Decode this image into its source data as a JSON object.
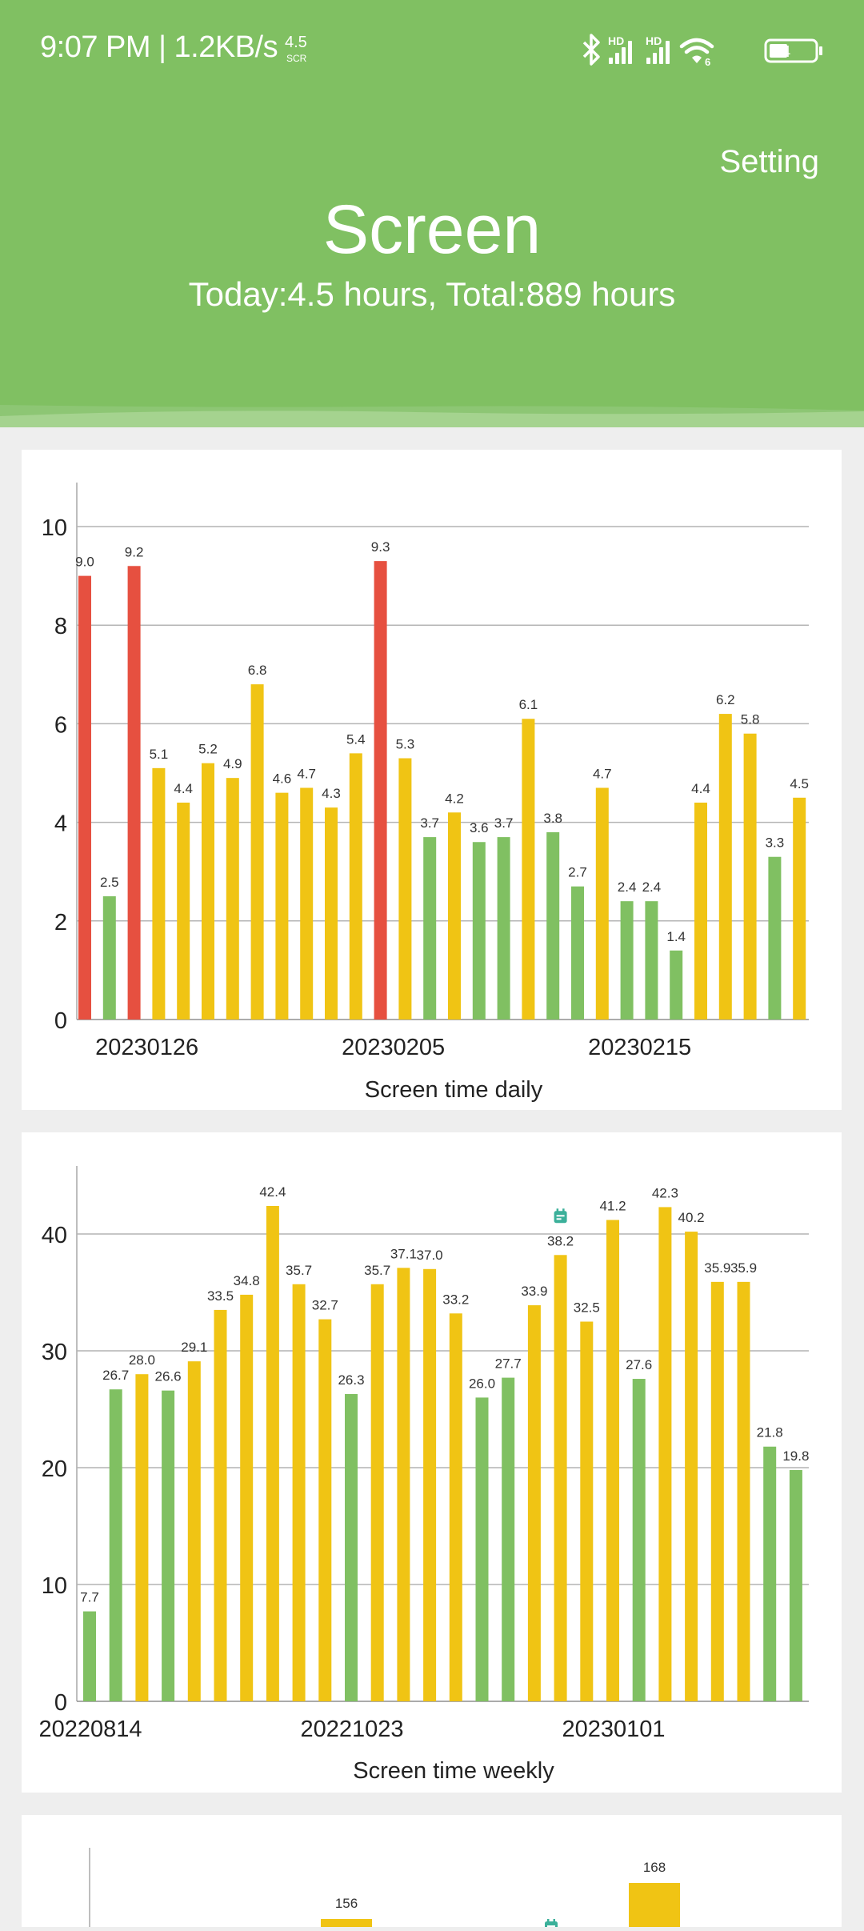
{
  "status_bar": {
    "time": "9:07 PM | 1.2KB/s",
    "scr_value": "4.5",
    "scr_label": "SCR",
    "signal1_label": "HD",
    "signal2_label": "HD",
    "wifi_label": "6",
    "battery_level": "44",
    "icons": [
      "bluetooth-icon",
      "cellular-signal-icon",
      "cellular-signal-icon",
      "wifi-icon",
      "battery-icon"
    ]
  },
  "header": {
    "setting_label": "Setting",
    "title": "Screen",
    "summary": "Today:4.5 hours, Total:889 hours"
  },
  "colors": {
    "header_green": "#80c062",
    "bar_green": "#80c062",
    "bar_yellow": "#f0c414",
    "bar_red": "#e65040",
    "marker_teal": "#3bb09a",
    "background": "#eeeeee"
  },
  "chart_data": [
    {
      "type": "bar",
      "title": "Screen time daily",
      "xlabel": "",
      "ylabel": "",
      "ylim": [
        0,
        11
      ],
      "yticks": [
        0,
        2,
        4,
        6,
        8,
        10
      ],
      "grid": true,
      "x_tick_labels": [
        {
          "index": 2,
          "label": "20230126"
        },
        {
          "index": 12,
          "label": "20230205"
        },
        {
          "index": 22,
          "label": "20230215"
        }
      ],
      "values": [
        9.0,
        2.5,
        9.2,
        5.1,
        4.4,
        5.2,
        4.9,
        6.8,
        4.6,
        4.7,
        4.3,
        5.4,
        9.3,
        5.3,
        3.7,
        4.2,
        3.6,
        3.7,
        6.1,
        3.8,
        2.7,
        4.7,
        2.4,
        2.4,
        1.4,
        4.4,
        6.2,
        5.8,
        3.3,
        4.5
      ],
      "labels": [
        "9.0",
        "2.5",
        "9.2",
        "5.1",
        "4.4",
        "5.2",
        "4.9",
        "6.8",
        "4.6",
        "4.7",
        "4.3",
        "5.4",
        "9.3",
        "5.3",
        "3.7",
        "4.2",
        "3.6",
        "3.7",
        "6.1",
        "3.8",
        "2.7",
        "4.7",
        "2.4",
        "2.4",
        "1.4",
        "4.4",
        "6.2",
        "5.8",
        "3.3",
        "4.5"
      ],
      "bar_colors": [
        "red",
        "green",
        "red",
        "yellow",
        "yellow",
        "yellow",
        "yellow",
        "yellow",
        "yellow",
        "yellow",
        "yellow",
        "yellow",
        "red",
        "yellow",
        "green",
        "yellow",
        "green",
        "green",
        "yellow",
        "green",
        "green",
        "yellow",
        "green",
        "green",
        "green",
        "yellow",
        "yellow",
        "yellow",
        "green",
        "yellow"
      ]
    },
    {
      "type": "bar",
      "title": "Screen time weekly",
      "xlabel": "",
      "ylabel": "",
      "ylim": [
        0,
        45
      ],
      "yticks": [
        0,
        10,
        20,
        30,
        40
      ],
      "grid": true,
      "x_tick_labels": [
        {
          "index": 0,
          "label": "20220814"
        },
        {
          "index": 10,
          "label": "20221023"
        },
        {
          "index": 20,
          "label": "20230101"
        }
      ],
      "values": [
        7.7,
        26.7,
        28.0,
        26.6,
        29.1,
        33.5,
        34.8,
        42.4,
        35.7,
        32.7,
        26.3,
        35.7,
        37.1,
        37.0,
        33.2,
        26.0,
        27.7,
        33.9,
        38.2,
        32.5,
        41.2,
        27.6,
        42.3,
        40.2,
        35.9,
        35.9,
        21.8,
        19.8
      ],
      "labels": [
        "7.7",
        "26.7",
        "28.0",
        "26.6",
        "29.1",
        "33.5",
        "34.8",
        "42.4",
        "35.7",
        "32.7",
        "26.3",
        "35.7",
        "37.1",
        "37.0",
        "33.2",
        "26.0",
        "27.7",
        "33.9",
        "38.2",
        "32.5",
        "41.2",
        "27.6",
        "42.3",
        "40.2",
        "35.9",
        "35.9",
        "21.8",
        "19.8"
      ],
      "bar_colors": [
        "green",
        "green",
        "yellow",
        "green",
        "yellow",
        "yellow",
        "yellow",
        "yellow",
        "yellow",
        "yellow",
        "green",
        "yellow",
        "yellow",
        "yellow",
        "yellow",
        "green",
        "green",
        "yellow",
        "yellow",
        "yellow",
        "yellow",
        "green",
        "yellow",
        "yellow",
        "yellow",
        "yellow",
        "green",
        "green"
      ],
      "marker": {
        "index": 18,
        "icon": "calendar-icon"
      }
    },
    {
      "type": "bar",
      "title": "",
      "partially_visible": true,
      "visible_bars": [
        {
          "value": 156,
          "label": "156",
          "color": "yellow"
        },
        {
          "value": 168,
          "label": "168",
          "color": "yellow"
        }
      ],
      "marker": {
        "icon": "calendar-icon"
      }
    }
  ]
}
